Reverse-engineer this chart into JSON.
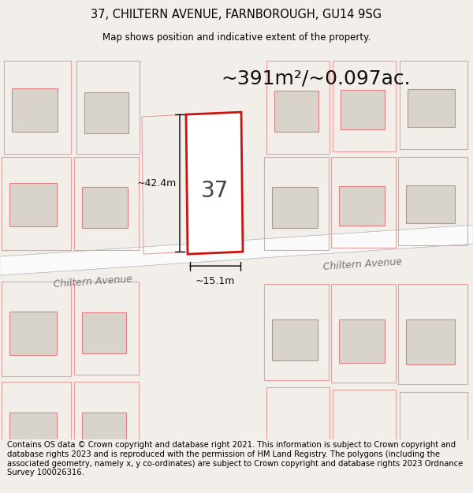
{
  "title": "37, CHILTERN AVENUE, FARNBOROUGH, GU14 9SG",
  "subtitle": "Map shows position and indicative extent of the property.",
  "area_text": "~391m²/~0.097ac.",
  "number_label": "37",
  "dim_width": "~15.1m",
  "dim_height": "~42.4m",
  "street_label": "Chiltern Avenue",
  "footer": "Contains OS data © Crown copyright and database right 2021. This information is subject to Crown copyright and database rights 2023 and is reproduced with the permission of HM Land Registry. The polygons (including the associated geometry, namely x, y co-ordinates) are subject to Crown copyright and database rights 2023 Ordnance Survey 100026316.",
  "bg_color": "#f2eeea",
  "map_bg": "#eeebe5",
  "road_color": "#fafafa",
  "plot_edge_color": "#cc1111",
  "building_fill": "#d8d4cc",
  "building_edge": "#e08080",
  "plot_outline_color": "#e8a0a0",
  "title_fontsize": 10.5,
  "subtitle_fontsize": 8.5,
  "area_fontsize": 18,
  "number_fontsize": 20,
  "dim_fontsize": 9,
  "street_fontsize": 9,
  "footer_fontsize": 7.2
}
